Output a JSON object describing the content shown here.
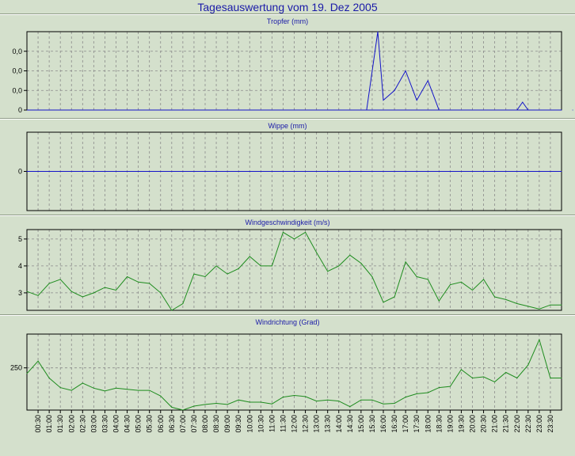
{
  "page": {
    "title": "Tagesauswertung vom 19. Dez 2005"
  },
  "colors": {
    "background": "#d4e0cc",
    "plot_bg": "#d4e0cc",
    "grid": "#8a8a8a",
    "title": "#1a1aa8"
  },
  "chart_data": [
    {
      "type": "line",
      "title": "Tropfer (mm)",
      "ytick_labels": [
        "0,0",
        "0,0",
        "0,0",
        "0"
      ],
      "ylim": [
        0,
        0.08
      ],
      "yticks": [
        0.06,
        0.04,
        0.02,
        0
      ],
      "color": "#1414c8",
      "x": [
        30.5,
        31.5,
        32,
        33,
        34,
        35,
        36,
        37,
        38,
        44,
        44.5,
        45,
        47,
        48,
        49
      ],
      "values": [
        0,
        0.08,
        0.01,
        0.02,
        0.04,
        0.01,
        0.03,
        0,
        0,
        0,
        0.008,
        0,
        0,
        0,
        0
      ],
      "segments": [
        [
          0,
          8
        ],
        [
          9,
          11
        ]
      ],
      "baseline": 0
    },
    {
      "type": "line",
      "title": "Wippe (mm)",
      "ytick_labels": [
        "0"
      ],
      "ylim": [
        -1,
        1
      ],
      "yticks": [
        0
      ],
      "color": "#1414c8",
      "x": [
        0,
        48
      ],
      "values": [
        0,
        0
      ]
    },
    {
      "type": "line",
      "title": "Windgeschwindigkeit (m/s)",
      "ytick_labels": [
        "5",
        "4",
        "3"
      ],
      "ylim": [
        2.35,
        5.35
      ],
      "yticks": [
        5,
        4,
        3
      ],
      "color": "#1e8c1e",
      "x": [
        0,
        1,
        2,
        3,
        4,
        5,
        6,
        7,
        8,
        9,
        10,
        11,
        12,
        13,
        14,
        15,
        16,
        17,
        18,
        19,
        20,
        21,
        22,
        23,
        24,
        25,
        26,
        27,
        28,
        29,
        30,
        31,
        32,
        33,
        34,
        35,
        36,
        37,
        38,
        39,
        40,
        41,
        42,
        43,
        44,
        45,
        46,
        47,
        48
      ],
      "values": [
        3.05,
        2.9,
        3.35,
        3.5,
        3.05,
        2.85,
        3.0,
        3.2,
        3.1,
        3.6,
        3.4,
        3.35,
        3.0,
        2.35,
        2.6,
        3.7,
        3.6,
        4.0,
        3.7,
        3.9,
        4.35,
        4.0,
        4.0,
        5.25,
        5.0,
        5.25,
        4.5,
        3.8,
        4.0,
        4.4,
        4.1,
        3.6,
        2.65,
        2.85,
        4.15,
        3.6,
        3.5,
        2.7,
        3.3,
        3.4,
        3.1,
        3.5,
        2.85,
        2.75,
        2.6,
        2.5,
        2.4,
        2.55,
        2.55
      ]
    },
    {
      "type": "line",
      "title": "Windrichtung (Grad)",
      "ytick_labels": [
        "250"
      ],
      "ylim": [
        175,
        310
      ],
      "yticks": [
        250
      ],
      "color": "#1e8c1e",
      "x": [
        0,
        1,
        2,
        3,
        4,
        5,
        6,
        7,
        8,
        9,
        10,
        11,
        12,
        13,
        14,
        15,
        16,
        17,
        18,
        19,
        20,
        21,
        22,
        23,
        24,
        25,
        26,
        27,
        28,
        29,
        30,
        31,
        32,
        33,
        34,
        35,
        36,
        37,
        38,
        39,
        40,
        41,
        42,
        43,
        44,
        45,
        46,
        47,
        48
      ],
      "values": [
        240,
        262,
        232,
        215,
        210,
        223,
        214,
        209,
        214,
        212,
        210,
        210,
        200,
        180,
        175,
        182,
        185,
        187,
        185,
        193,
        189,
        189,
        186,
        198,
        201,
        199,
        191,
        193,
        191,
        181,
        193,
        193,
        186,
        187,
        198,
        204,
        206,
        215,
        217,
        247,
        232,
        234,
        225,
        242,
        232,
        255,
        300,
        232,
        232
      ]
    }
  ],
  "x_axis": {
    "tick_labels": [
      "00:30",
      "01:00",
      "01:30",
      "02:00",
      "02:30",
      "03:00",
      "03:30",
      "04:00",
      "04:30",
      "05:00",
      "05:30",
      "06:00",
      "06:30",
      "07:00",
      "07:30",
      "08:00",
      "08:30",
      "09:00",
      "09:30",
      "10:00",
      "10:30",
      "11:00",
      "11:30",
      "12:00",
      "12:30",
      "13:00",
      "13:30",
      "14:00",
      "14:30",
      "15:00",
      "15:30",
      "16:00",
      "16:30",
      "17:00",
      "17:30",
      "18:00",
      "18:30",
      "19:00",
      "19:30",
      "20:00",
      "20:30",
      "21:00",
      "21:30",
      "22:00",
      "22:30",
      "23:00",
      "23:30"
    ]
  }
}
